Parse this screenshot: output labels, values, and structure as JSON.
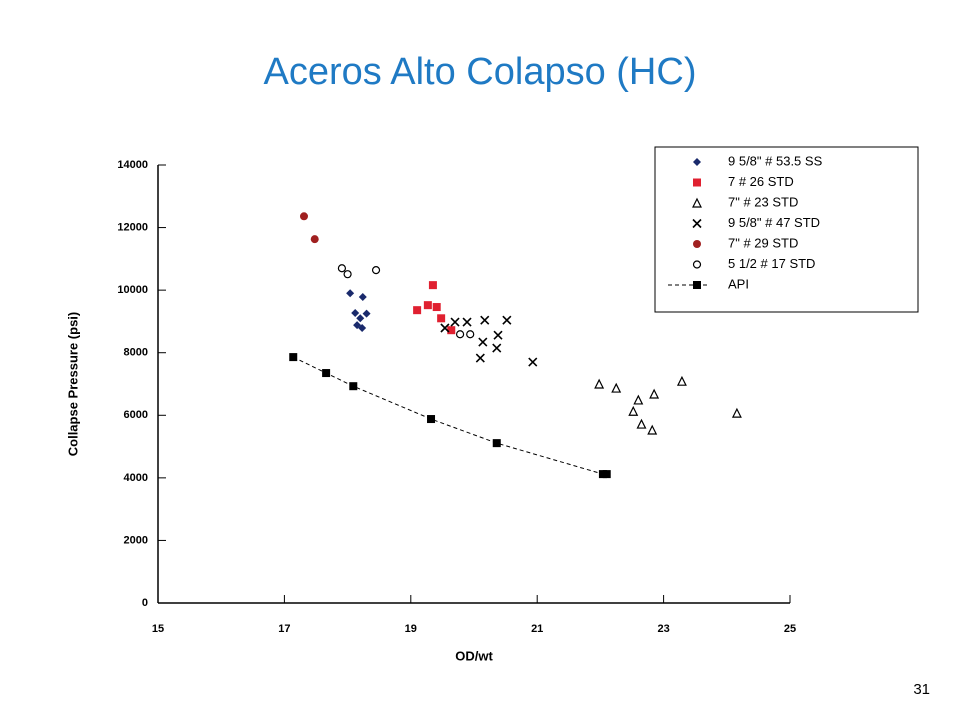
{
  "chart_data": {
    "type": "scatter",
    "title": "Aceros Alto Colapso (HC)",
    "xlabel": "OD/wt",
    "ylabel": "Collapse Pressure (psi)",
    "xlim": [
      15,
      25
    ],
    "xticks": [
      15,
      17,
      19,
      21,
      23,
      25
    ],
    "ylim": [
      0,
      14000
    ],
    "yticks": [
      0,
      2000,
      4000,
      6000,
      8000,
      10000,
      12000,
      14000
    ],
    "legend": "upper right",
    "series": [
      {
        "name": "9 5/8\" # 53.5 SS",
        "color": "#1a2a6c",
        "marker": "diamond",
        "x": [
          18.04,
          18.24,
          18.12,
          18.2,
          18.23,
          18.15,
          18.3
        ],
        "values": [
          9900,
          9780,
          9270,
          9100,
          8790,
          8880,
          9250
        ]
      },
      {
        "name": "7 # 26 STD",
        "color": "#e02030",
        "marker": "square",
        "x": [
          19.1,
          19.27,
          19.35,
          19.41,
          19.48,
          19.64
        ],
        "values": [
          9360,
          9520,
          10160,
          9460,
          9100,
          8720
        ]
      },
      {
        "name": "7\" # 23 STD",
        "color": "#000000",
        "marker": "triangle",
        "x": [
          21.98,
          22.25,
          22.52,
          22.6,
          22.65,
          22.82,
          22.85,
          23.29,
          24.16
        ],
        "values": [
          7000,
          6870,
          6130,
          6490,
          5720,
          5530,
          6680,
          7090,
          6070
        ]
      },
      {
        "name": "9 5/8\" # 47 STD",
        "color": "#000000",
        "marker": "x",
        "x": [
          19.54,
          19.7,
          19.89,
          20.17,
          20.1,
          20.36,
          20.52,
          20.93,
          20.38,
          20.14
        ],
        "values": [
          8790,
          8980,
          8980,
          9040,
          7830,
          8150,
          9040,
          7700,
          8560,
          8340
        ]
      },
      {
        "name": "7\" # 29 STD",
        "color": "#a02020",
        "marker": "circle",
        "x": [
          17.31,
          17.48
        ],
        "values": [
          12360,
          11630
        ]
      },
      {
        "name": "5 1/2 # 17 STD",
        "color": "#000000",
        "marker": "open-circle",
        "x": [
          17.91,
          18.0,
          18.45,
          19.78,
          19.94
        ],
        "values": [
          10700,
          10510,
          10640,
          8590,
          8590
        ]
      },
      {
        "name": "API",
        "color": "#000000",
        "marker": "square",
        "line": "dashed",
        "x": [
          17.14,
          17.66,
          18.09,
          19.32,
          20.36,
          22.04,
          22.1
        ],
        "values": [
          7860,
          7350,
          6930,
          5880,
          5110,
          4120,
          4120
        ]
      }
    ]
  },
  "page_number": "31"
}
